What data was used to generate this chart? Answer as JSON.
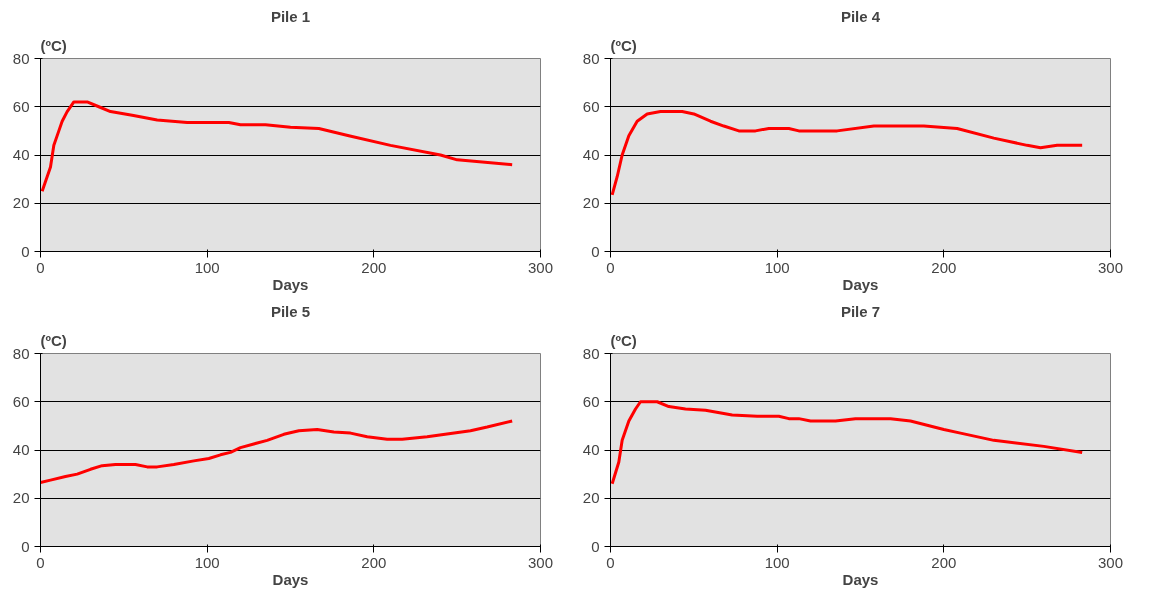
{
  "chart_data": [
    {
      "type": "line",
      "title": "Pile 1",
      "xlabel": "Days",
      "ylabel": "(ºC)",
      "xlim": [
        0,
        300
      ],
      "ylim": [
        0,
        80
      ],
      "xticks": [
        0,
        100,
        200,
        300
      ],
      "yticks": [
        0,
        20,
        40,
        60,
        80
      ],
      "grid": "y",
      "x": [
        1,
        3,
        6,
        8,
        11,
        13,
        16,
        19,
        20,
        28,
        35,
        42,
        55,
        70,
        88,
        113,
        120,
        135,
        150,
        167,
        185,
        210,
        240,
        250,
        283
      ],
      "series": [
        {
          "color": "#ff0000",
          "values": [
            25,
            29,
            35,
            44,
            50,
            54,
            58,
            61,
            62,
            62,
            60,
            58,
            56.5,
            54.5,
            53.5,
            53.5,
            52.5,
            52.5,
            51.5,
            51,
            48,
            44,
            40,
            38,
            36
          ]
        }
      ]
    },
    {
      "type": "line",
      "title": "Pile 4",
      "xlabel": "Days",
      "ylabel": "(ºC)",
      "xlim": [
        0,
        300
      ],
      "ylim": [
        0,
        80
      ],
      "xticks": [
        0,
        100,
        200,
        300
      ],
      "yticks": [
        0,
        20,
        40,
        60,
        80
      ],
      "grid": "y",
      "x": [
        1,
        4,
        7,
        11,
        16,
        22,
        30,
        43,
        50,
        60,
        68,
        77,
        87,
        95,
        107,
        113,
        136,
        158,
        188,
        208,
        230,
        250,
        258,
        268,
        283
      ],
      "series": [
        {
          "color": "#ff0000",
          "values": [
            23.5,
            31,
            40,
            48,
            54,
            57,
            58,
            58,
            57,
            54,
            52,
            50,
            50,
            51,
            51,
            50,
            50,
            52,
            52,
            51,
            47,
            44,
            43,
            44,
            44
          ]
        }
      ]
    },
    {
      "type": "line",
      "title": "Pile 5",
      "xlabel": "Days",
      "ylabel": "(ºC)",
      "xlim": [
        0,
        300
      ],
      "ylim": [
        0,
        80
      ],
      "xticks": [
        0,
        100,
        200,
        300
      ],
      "yticks": [
        0,
        20,
        40,
        60,
        80
      ],
      "grid": "y",
      "x": [
        0,
        6,
        15,
        22,
        30,
        37,
        45,
        57,
        64,
        70,
        80,
        92,
        101,
        108,
        114,
        120,
        136,
        146,
        155,
        166,
        176,
        186,
        196,
        208,
        217,
        232,
        258,
        268,
        283
      ],
      "series": [
        {
          "color": "#ff0000",
          "values": [
            26.5,
            27.5,
            29,
            30,
            32,
            33.5,
            34,
            34,
            33,
            33,
            34,
            35.5,
            36.5,
            38,
            39,
            41,
            44,
            46.5,
            48,
            48.5,
            47.5,
            47,
            45.5,
            44.5,
            44.5,
            45.5,
            48,
            49.5,
            52
          ]
        }
      ]
    },
    {
      "type": "line",
      "title": "Pile 7",
      "xlabel": "Days",
      "ylabel": "(ºC)",
      "xlim": [
        0,
        300
      ],
      "ylim": [
        0,
        80
      ],
      "xticks": [
        0,
        100,
        200,
        300
      ],
      "yticks": [
        0,
        20,
        40,
        60,
        80
      ],
      "grid": "y",
      "x": [
        1,
        5,
        7,
        11,
        15,
        18,
        28,
        35,
        45,
        57,
        73,
        88,
        101,
        107,
        113,
        120,
        135,
        147,
        168,
        180,
        200,
        210,
        230,
        260,
        283
      ],
      "series": [
        {
          "color": "#ff0000",
          "values": [
            26,
            35,
            44,
            52,
            57,
            60,
            60,
            58,
            57,
            56.5,
            54.5,
            54,
            54,
            53,
            53,
            52,
            52,
            53,
            53,
            52,
            48.5,
            47,
            44,
            41.5,
            39
          ]
        }
      ]
    }
  ]
}
